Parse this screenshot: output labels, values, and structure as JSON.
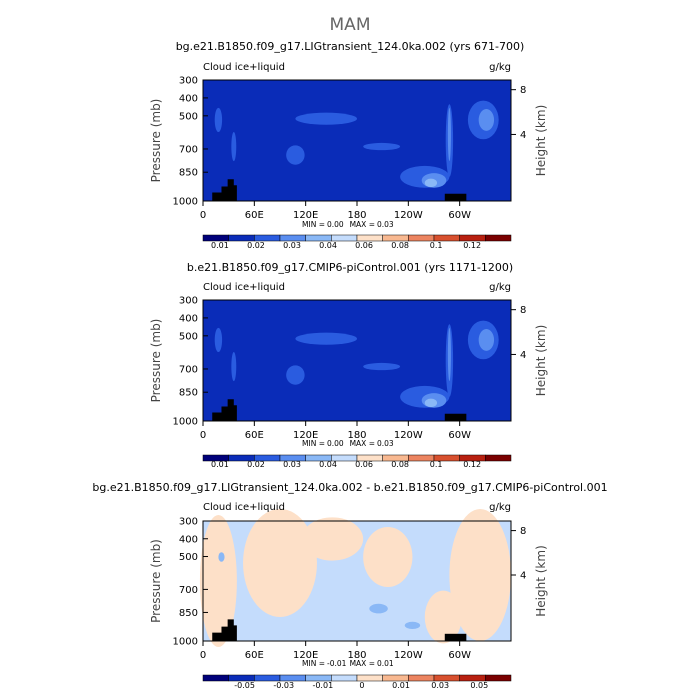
{
  "title": "MAM",
  "colors": {
    "scale_positive": [
      "#00007a",
      "#0a2cb8",
      "#2a5ce0",
      "#5a8ef0",
      "#8ab8f6",
      "#c4dcfc",
      "#fde0c8",
      "#f8b890",
      "#ec8460",
      "#d8502e",
      "#b82010",
      "#7a0000"
    ],
    "scale_diff": [
      "#00007a",
      "#0a2cb8",
      "#2a5ce0",
      "#5a8ef0",
      "#8ab8f6",
      "#c4dcfc",
      "#fde0c8",
      "#f8b890",
      "#ec8460",
      "#d8502e",
      "#b82010",
      "#7a0000"
    ],
    "topography": "#000000"
  },
  "chart_data": [
    {
      "type": "heatmap",
      "subtitle": "bg.e21.B1850.f09_g17.LIGtransient_124.0ka.002 (yrs 671-700)",
      "variable": "Cloud ice+liquid",
      "units": "g/kg",
      "ylabel": "Pressure (mb)",
      "ylabel_right": "Height (km)",
      "x_ticks": [
        "0",
        "60E",
        "120E",
        "180",
        "120W",
        "60W"
      ],
      "y_ticks": [
        "300",
        "400",
        "500",
        "700",
        "850",
        "1000"
      ],
      "height_ticks": [
        "8",
        "4"
      ],
      "min": "0.00",
      "max": "0.03",
      "colorbar_labels": [
        "0.01",
        "0.02",
        "0.03",
        "0.04",
        "0.06",
        "0.08",
        "0.1",
        "0.12"
      ]
    },
    {
      "type": "heatmap",
      "subtitle": "b.e21.B1850.f09_g17.CMIP6-piControl.001 (yrs 1171-1200)",
      "variable": "Cloud ice+liquid",
      "units": "g/kg",
      "ylabel": "Pressure (mb)",
      "ylabel_right": "Height (km)",
      "x_ticks": [
        "0",
        "60E",
        "120E",
        "180",
        "120W",
        "60W"
      ],
      "y_ticks": [
        "300",
        "400",
        "500",
        "700",
        "850",
        "1000"
      ],
      "height_ticks": [
        "8",
        "4"
      ],
      "min": "0.00",
      "max": "0.03",
      "colorbar_labels": [
        "0.01",
        "0.02",
        "0.03",
        "0.04",
        "0.06",
        "0.08",
        "0.1",
        "0.12"
      ]
    },
    {
      "type": "heatmap",
      "subtitle": "bg.e21.B1850.f09_g17.LIGtransient_124.0ka.002 - b.e21.B1850.f09_g17.CMIP6-piControl.001",
      "variable": "Cloud ice+liquid",
      "units": "g/kg",
      "ylabel": "Pressure (mb)",
      "ylabel_right": "Height (km)",
      "x_ticks": [
        "0",
        "60E",
        "120E",
        "180",
        "120W",
        "60W"
      ],
      "y_ticks": [
        "300",
        "400",
        "500",
        "700",
        "850",
        "1000"
      ],
      "height_ticks": [
        "8",
        "4"
      ],
      "min": "-0.01",
      "max": "0.01",
      "colorbar_labels": [
        "-0.05",
        "-0.03",
        "-0.01",
        "0",
        "0.01",
        "0.03",
        "0.05"
      ]
    }
  ]
}
